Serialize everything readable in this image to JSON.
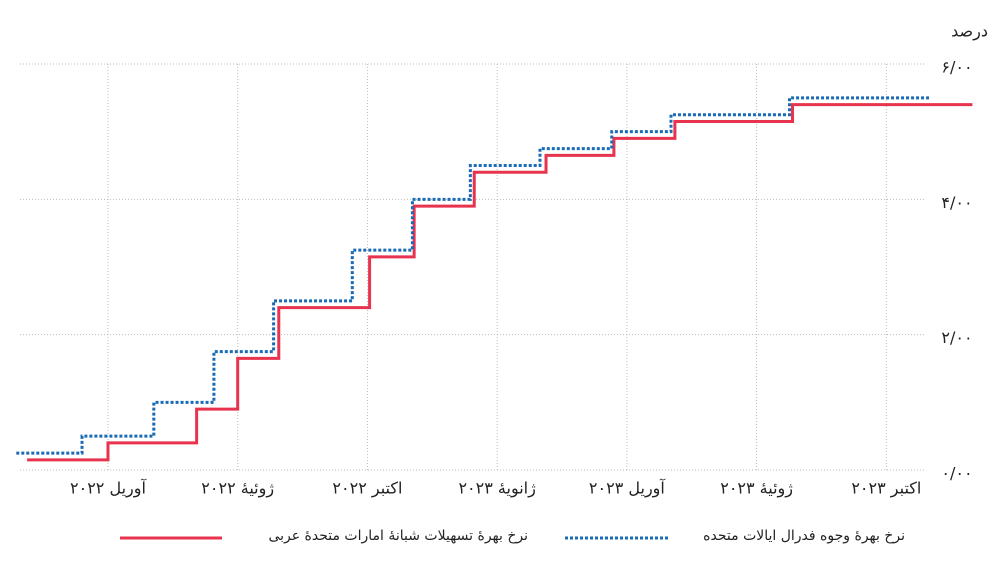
{
  "chart_data": {
    "type": "line",
    "step": "post",
    "unit_label": "درصد",
    "xlim": [
      0.85,
      23.05
    ],
    "ylim": [
      0,
      6
    ],
    "xticks": [
      {
        "value": 3,
        "label": "آوریل ۲۰۲۲"
      },
      {
        "value": 6,
        "label": "ژوئیهٔ ۲۰۲۲"
      },
      {
        "value": 9,
        "label": "اکتبر ۲۰۲۲"
      },
      {
        "value": 12,
        "label": "ژانویهٔ ۲۰۲۳"
      },
      {
        "value": 15,
        "label": "آوریل ۲۰۲۳"
      },
      {
        "value": 18,
        "label": "ژوئیهٔ ۲۰۲۳"
      },
      {
        "value": 21,
        "label": "اکتبر ۲۰۲۳"
      }
    ],
    "yticks": [
      {
        "value": 0,
        "label": "۰/۰۰"
      },
      {
        "value": 2,
        "label": "۲/۰۰"
      },
      {
        "value": 4,
        "label": "۴/۰۰"
      },
      {
        "value": 6,
        "label": "۶/۰۰"
      }
    ],
    "grid": true,
    "series": [
      {
        "name": "نرخ بهرهٔ تسهیلات شبانهٔ امارات متحدهٔ عربی",
        "color": "#e8334f",
        "dash": false,
        "x": [
          1.13,
          3.0,
          5.05,
          6.0,
          6.95,
          9.05,
          10.08,
          11.47,
          13.13,
          14.7,
          16.11,
          18.83,
          22.99
        ],
        "values": [
          0.15,
          0.4,
          0.9,
          1.65,
          2.4,
          3.15,
          3.9,
          4.4,
          4.65,
          4.9,
          5.15,
          5.4,
          5.4
        ]
      },
      {
        "name": "نرخ بهرهٔ وجوه فدرال ایالات متحده",
        "color": "#1a6bb5",
        "dash": true,
        "x": [
          0.88,
          2.4,
          4.06,
          5.45,
          6.83,
          8.65,
          10.04,
          11.38,
          12.99,
          14.65,
          16.02,
          18.76,
          22.0
        ],
        "values": [
          0.25,
          0.5,
          1.0,
          1.75,
          2.5,
          3.25,
          4.0,
          4.5,
          4.75,
          5.0,
          5.25,
          5.5,
          5.5
        ]
      }
    ]
  }
}
